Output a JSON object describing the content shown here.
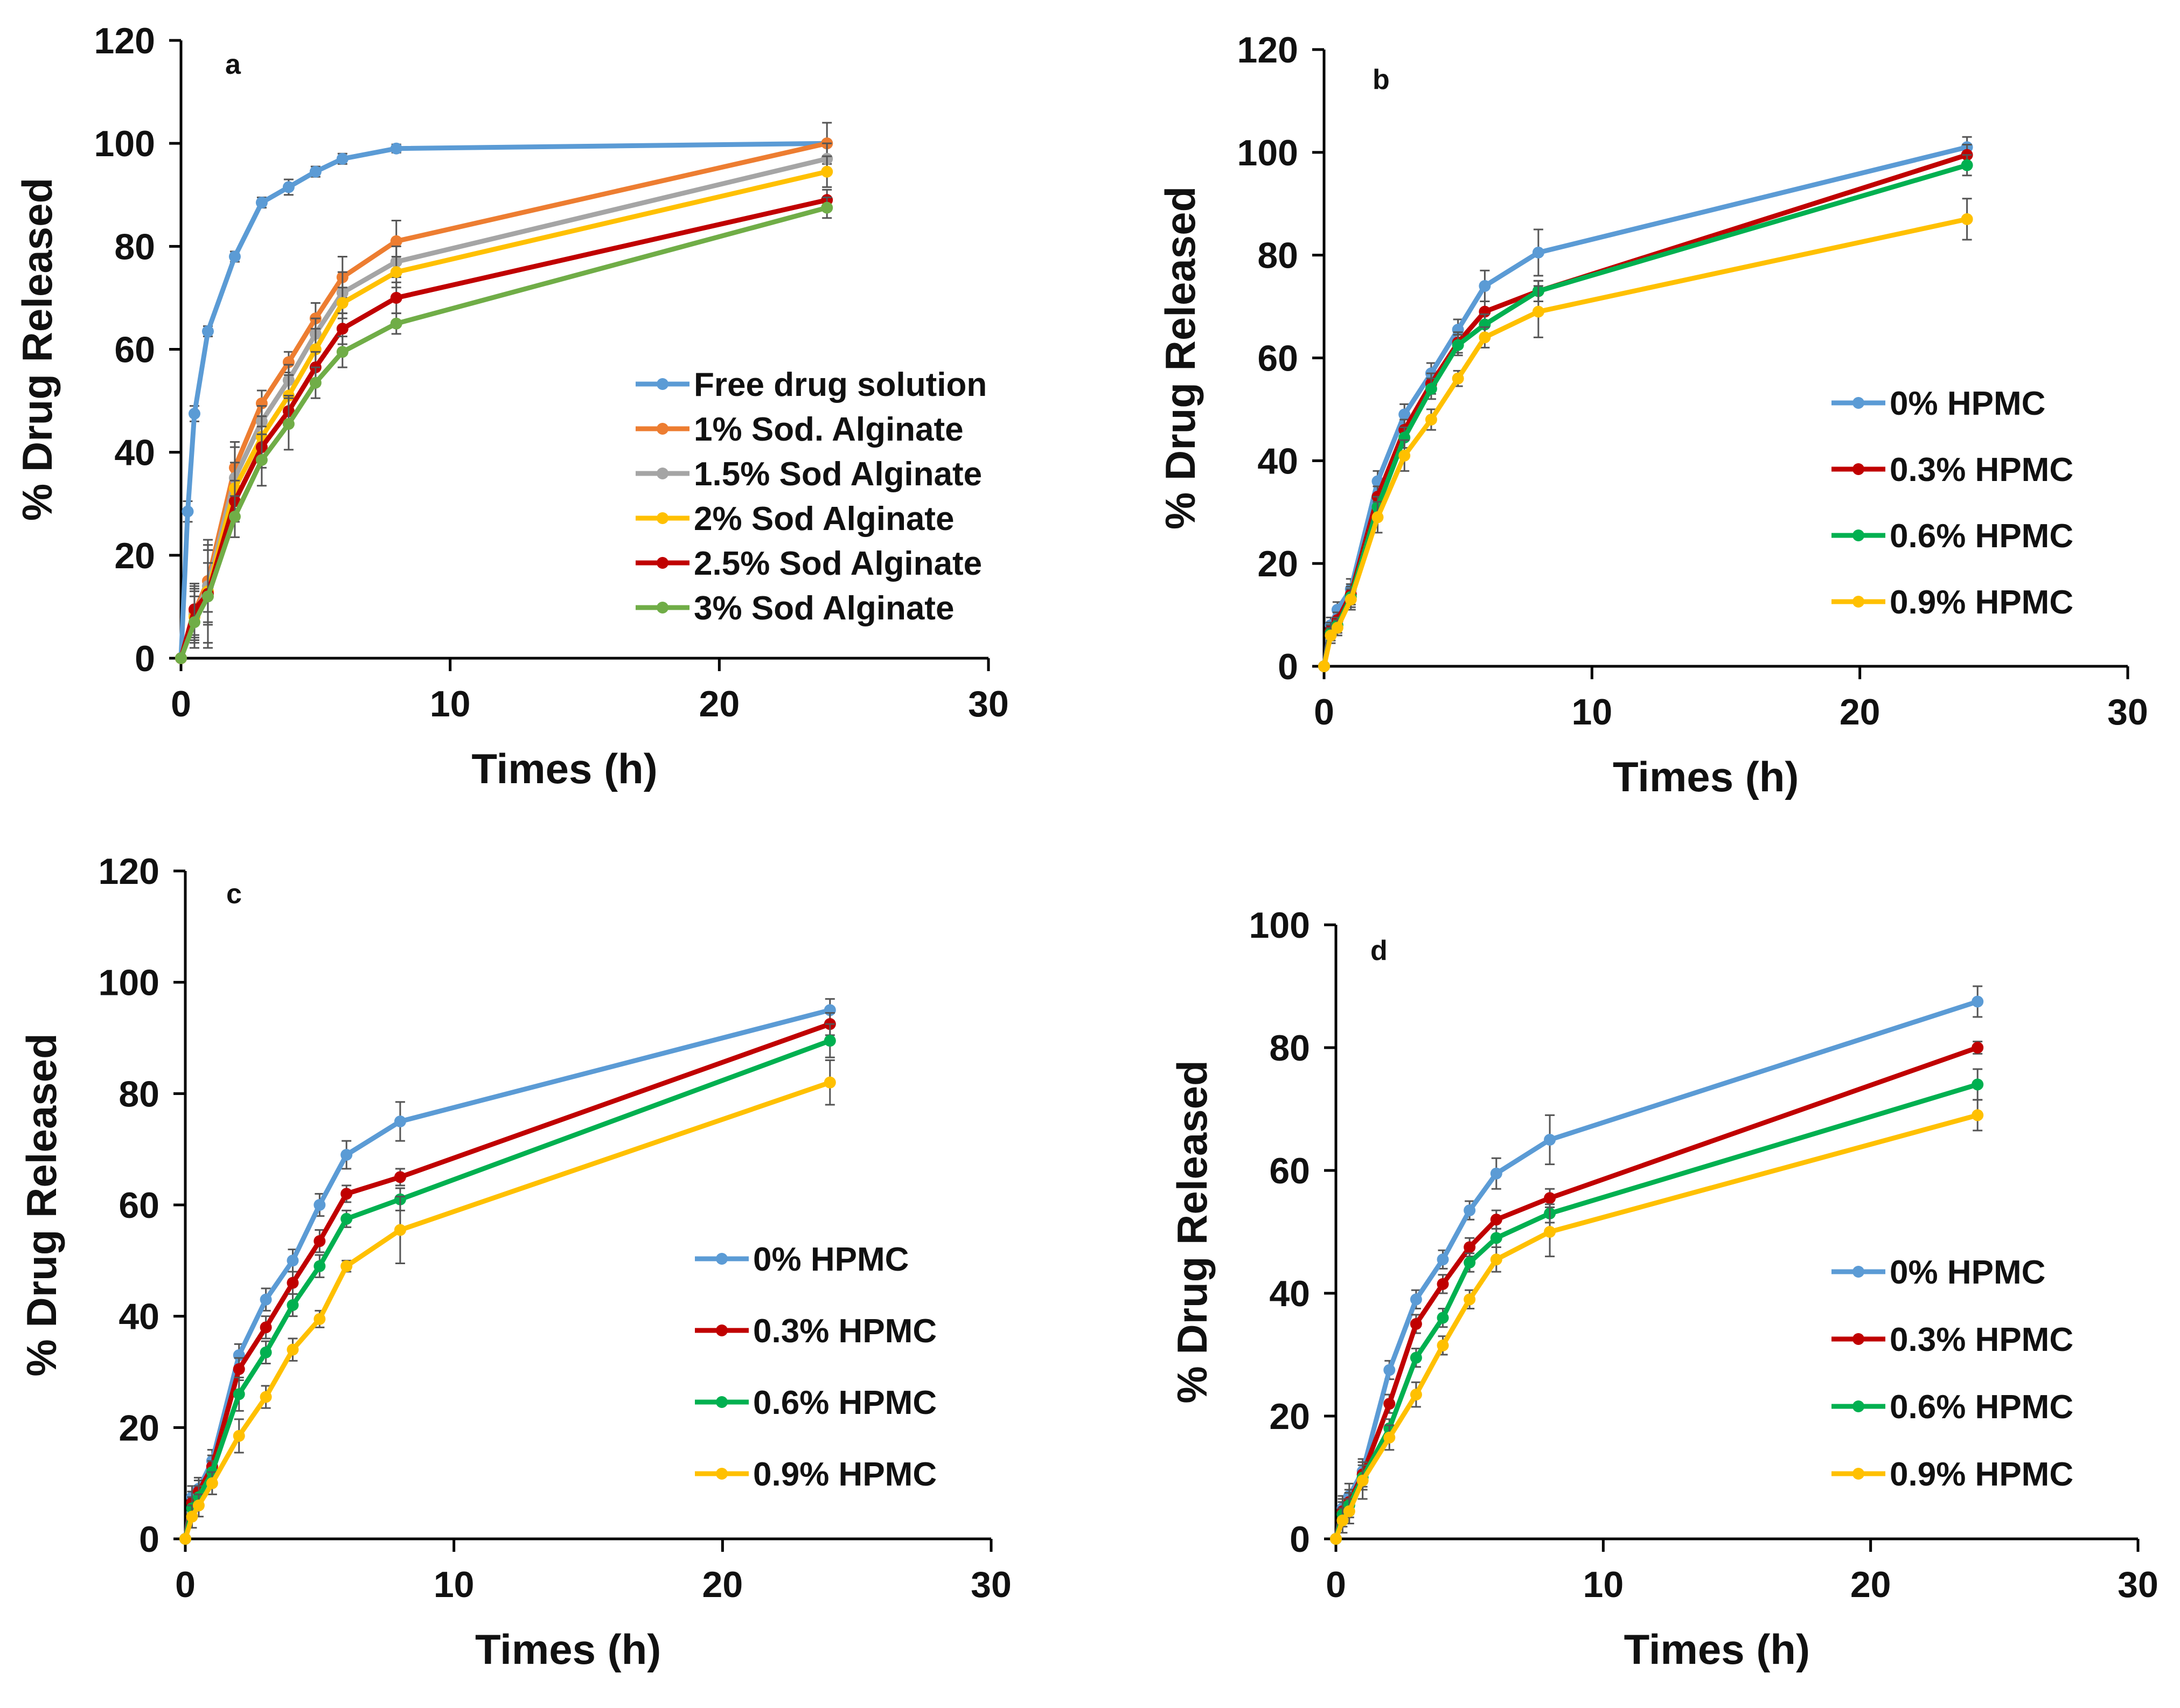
{
  "figure": "Drug release profiles (four panels)",
  "chart_data": [
    {
      "type": "line",
      "panel_label": "a",
      "xlabel": "Times (h)",
      "ylabel": "% Drug Released",
      "xlim": [
        0,
        30
      ],
      "ylim": [
        0,
        120
      ],
      "xticks": [
        0,
        10,
        20,
        30
      ],
      "yticks": [
        0,
        20,
        40,
        60,
        80,
        100,
        120
      ],
      "legend_position": "center-right",
      "series": [
        {
          "name": "Free drug solution",
          "color": "#5B9BD5",
          "x": [
            0,
            0.25,
            0.5,
            1,
            2,
            3,
            4,
            5,
            6,
            8,
            24
          ],
          "y": [
            0,
            28.5,
            47.5,
            63.5,
            78,
            88.5,
            91.5,
            94.5,
            97,
            99,
            100
          ],
          "err": [
            0,
            2,
            1.5,
            1,
            1,
            1,
            1.5,
            1,
            1,
            0.8,
            0.5
          ]
        },
        {
          "name": "1% Sod. Alginate",
          "color": "#ED7D31",
          "x": [
            0,
            0.5,
            1,
            2,
            3,
            4,
            5,
            6,
            8,
            24
          ],
          "y": [
            0,
            9,
            15,
            37,
            49.5,
            57.5,
            66,
            74,
            81,
            100
          ],
          "err": [
            0,
            5,
            6,
            5,
            2.5,
            2,
            3,
            4,
            4,
            4
          ]
        },
        {
          "name": "1.5% Sod Alginate",
          "color": "#A5A5A5",
          "x": [
            0,
            0.5,
            1,
            2,
            3,
            4,
            5,
            6,
            8,
            24
          ],
          "y": [
            0,
            8.5,
            14,
            35,
            46,
            54,
            63,
            71,
            77,
            97
          ],
          "err": [
            0,
            5,
            7,
            6,
            3,
            3,
            3,
            4,
            3,
            3
          ]
        },
        {
          "name": "2% Sod Alginate",
          "color": "#FFC000",
          "x": [
            0,
            0.5,
            1,
            2,
            3,
            4,
            5,
            6,
            8,
            24
          ],
          "y": [
            0,
            8,
            13,
            33,
            43,
            51,
            60,
            69,
            75,
            94.5
          ],
          "err": [
            0,
            5,
            10,
            5,
            4,
            4,
            4,
            3,
            3,
            3
          ]
        },
        {
          "name": "2.5% Sod Alginate",
          "color": "#C00000",
          "x": [
            0,
            0.5,
            1,
            2,
            3,
            4,
            5,
            6,
            8,
            24
          ],
          "y": [
            0,
            9.5,
            12.5,
            30.5,
            41,
            48,
            56.5,
            64,
            70,
            89
          ],
          "err": [
            0,
            5,
            6,
            4,
            4,
            3,
            3,
            3,
            3,
            2
          ]
        },
        {
          "name": "3% Sod Alginate",
          "color": "#70AD47",
          "x": [
            0,
            0.5,
            1,
            2,
            3,
            4,
            5,
            6,
            8,
            24
          ],
          "y": [
            0,
            7,
            12,
            27.5,
            38.5,
            45.5,
            53.5,
            59.5,
            65,
            87.5
          ],
          "err": [
            0,
            5,
            10,
            4,
            5,
            5,
            3,
            3,
            2,
            2
          ]
        }
      ]
    },
    {
      "type": "line",
      "panel_label": "b",
      "xlabel": "Times (h)",
      "ylabel": "% Drug Released",
      "xlim": [
        0,
        30
      ],
      "ylim": [
        0,
        120
      ],
      "xticks": [
        0,
        10,
        20,
        30
      ],
      "yticks": [
        0,
        20,
        40,
        60,
        80,
        100,
        120
      ],
      "legend_position": "center-right",
      "series": [
        {
          "name": "0% HPMC",
          "color": "#5B9BD5",
          "x": [
            0,
            0.25,
            0.5,
            1,
            2,
            3,
            4,
            5,
            6,
            8,
            24
          ],
          "y": [
            0,
            8,
            11,
            15,
            36,
            49,
            57,
            65.5,
            74,
            80.5,
            101
          ],
          "err": [
            0,
            1.5,
            1.5,
            2,
            2,
            2,
            2,
            2,
            3,
            4.5,
            2
          ]
        },
        {
          "name": "0.3% HPMC",
          "color": "#C00000",
          "x": [
            0,
            0.25,
            0.5,
            1,
            2,
            3,
            4,
            5,
            6,
            8,
            24
          ],
          "y": [
            0,
            7,
            9,
            14,
            33,
            46,
            55,
            63,
            69,
            73,
            99.5
          ],
          "err": [
            0,
            1.5,
            1.5,
            2,
            2,
            2,
            2,
            2,
            2,
            2,
            2
          ]
        },
        {
          "name": "0.6% HPMC",
          "color": "#00B050",
          "x": [
            0,
            0.25,
            0.5,
            1,
            2,
            3,
            4,
            5,
            6,
            8,
            24
          ],
          "y": [
            0,
            6.5,
            8,
            13.5,
            31,
            44.5,
            54,
            62.5,
            66.5,
            73,
            97.5
          ],
          "err": [
            0,
            1.5,
            1.5,
            2,
            2,
            2,
            2,
            2,
            2,
            2,
            2
          ]
        },
        {
          "name": "0.9% HPMC",
          "color": "#FFC000",
          "x": [
            0,
            0.25,
            0.5,
            1,
            2,
            3,
            4,
            5,
            6,
            8,
            24
          ],
          "y": [
            0,
            6,
            7.5,
            13,
            29,
            41,
            48,
            56,
            64,
            69,
            87
          ],
          "err": [
            0,
            1.5,
            1.5,
            2,
            3,
            3,
            2,
            1.5,
            2,
            5,
            4
          ]
        }
      ]
    },
    {
      "type": "line",
      "panel_label": "c",
      "xlabel": "Times (h)",
      "ylabel": "% Drug Released",
      "xlim": [
        0,
        30
      ],
      "ylim": [
        0,
        120
      ],
      "xticks": [
        0,
        10,
        20,
        30
      ],
      "yticks": [
        0,
        20,
        40,
        60,
        80,
        100,
        120
      ],
      "legend_position": "center-right",
      "series": [
        {
          "name": "0% HPMC",
          "color": "#5B9BD5",
          "x": [
            0,
            0.25,
            0.5,
            1,
            2,
            3,
            4,
            5,
            6,
            8,
            24
          ],
          "y": [
            0,
            7.5,
            9,
            14,
            33,
            43,
            50,
            60,
            69,
            75,
            95
          ],
          "err": [
            0,
            2,
            2,
            2,
            2,
            2,
            2,
            2,
            2.5,
            3.5,
            2
          ]
        },
        {
          "name": "0.3% HPMC",
          "color": "#C00000",
          "x": [
            0,
            0.25,
            0.5,
            1,
            2,
            3,
            4,
            5,
            6,
            8,
            24
          ],
          "y": [
            0,
            6.5,
            8.5,
            13,
            30.5,
            38,
            46,
            53.5,
            62,
            65,
            92.5
          ],
          "err": [
            0,
            2,
            2,
            2,
            2,
            2,
            2,
            2,
            1.5,
            1.5,
            2
          ]
        },
        {
          "name": "0.6% HPMC",
          "color": "#00B050",
          "x": [
            0,
            0.25,
            0.5,
            1,
            2,
            3,
            4,
            5,
            6,
            8,
            24
          ],
          "y": [
            0,
            5.5,
            7.5,
            12,
            26,
            33.5,
            42,
            49,
            57.5,
            61,
            89.5
          ],
          "err": [
            0,
            2,
            2,
            2,
            3,
            2,
            2,
            2,
            1.5,
            2,
            3
          ]
        },
        {
          "name": "0.9% HPMC",
          "color": "#FFC000",
          "x": [
            0,
            0.25,
            0.5,
            1,
            2,
            3,
            4,
            5,
            6,
            8,
            24
          ],
          "y": [
            0,
            4,
            6,
            10,
            18.5,
            25.5,
            34,
            39.5,
            49,
            55.5,
            82
          ],
          "err": [
            0,
            2,
            2,
            2,
            3,
            2,
            2,
            1.5,
            1,
            6,
            4
          ]
        }
      ]
    },
    {
      "type": "line",
      "panel_label": "d",
      "xlabel": "Times (h)",
      "ylabel": "% Drug Released",
      "xlim": [
        0,
        30
      ],
      "ylim": [
        0,
        100
      ],
      "xticks": [
        0,
        10,
        20,
        30
      ],
      "yticks": [
        0,
        20,
        40,
        60,
        80,
        100
      ],
      "legend_position": "center-right",
      "series": [
        {
          "name": "0% HPMC",
          "color": "#5B9BD5",
          "x": [
            0,
            0.25,
            0.5,
            1,
            2,
            3,
            4,
            5,
            6,
            8,
            24
          ],
          "y": [
            0,
            5,
            7,
            11,
            27.5,
            39,
            45.5,
            53.5,
            59.5,
            65,
            87.5
          ],
          "err": [
            0,
            2,
            2,
            2,
            1.5,
            1.5,
            1.5,
            1.5,
            2.5,
            4,
            2.5
          ]
        },
        {
          "name": "0.3% HPMC",
          "color": "#C00000",
          "x": [
            0,
            0.25,
            0.5,
            1,
            2,
            3,
            4,
            5,
            6,
            8,
            24
          ],
          "y": [
            0,
            4.5,
            6,
            10.5,
            22,
            35,
            41.5,
            47.5,
            52,
            55.5,
            80
          ],
          "err": [
            0,
            2,
            2,
            2,
            1.5,
            1.5,
            1.5,
            1.5,
            1.5,
            1.5,
            1
          ]
        },
        {
          "name": "0.6% HPMC",
          "color": "#00B050",
          "x": [
            0,
            0.25,
            0.5,
            1,
            2,
            3,
            4,
            5,
            6,
            8,
            24
          ],
          "y": [
            0,
            4,
            5.5,
            10,
            18,
            29.5,
            36,
            45,
            49,
            53,
            74
          ],
          "err": [
            0,
            2,
            2,
            2,
            1.5,
            1.5,
            1.5,
            1.5,
            1.5,
            1.5,
            2.5
          ]
        },
        {
          "name": "0.9% HPMC",
          "color": "#FFC000",
          "x": [
            0,
            0.25,
            0.5,
            1,
            2,
            3,
            4,
            5,
            6,
            8,
            24
          ],
          "y": [
            0,
            3,
            4.5,
            9.5,
            16.5,
            23.5,
            31.5,
            39,
            45.5,
            50,
            69
          ],
          "err": [
            0,
            2,
            2,
            3,
            2,
            2,
            1.5,
            1.5,
            2,
            4,
            2.5
          ]
        }
      ]
    }
  ]
}
